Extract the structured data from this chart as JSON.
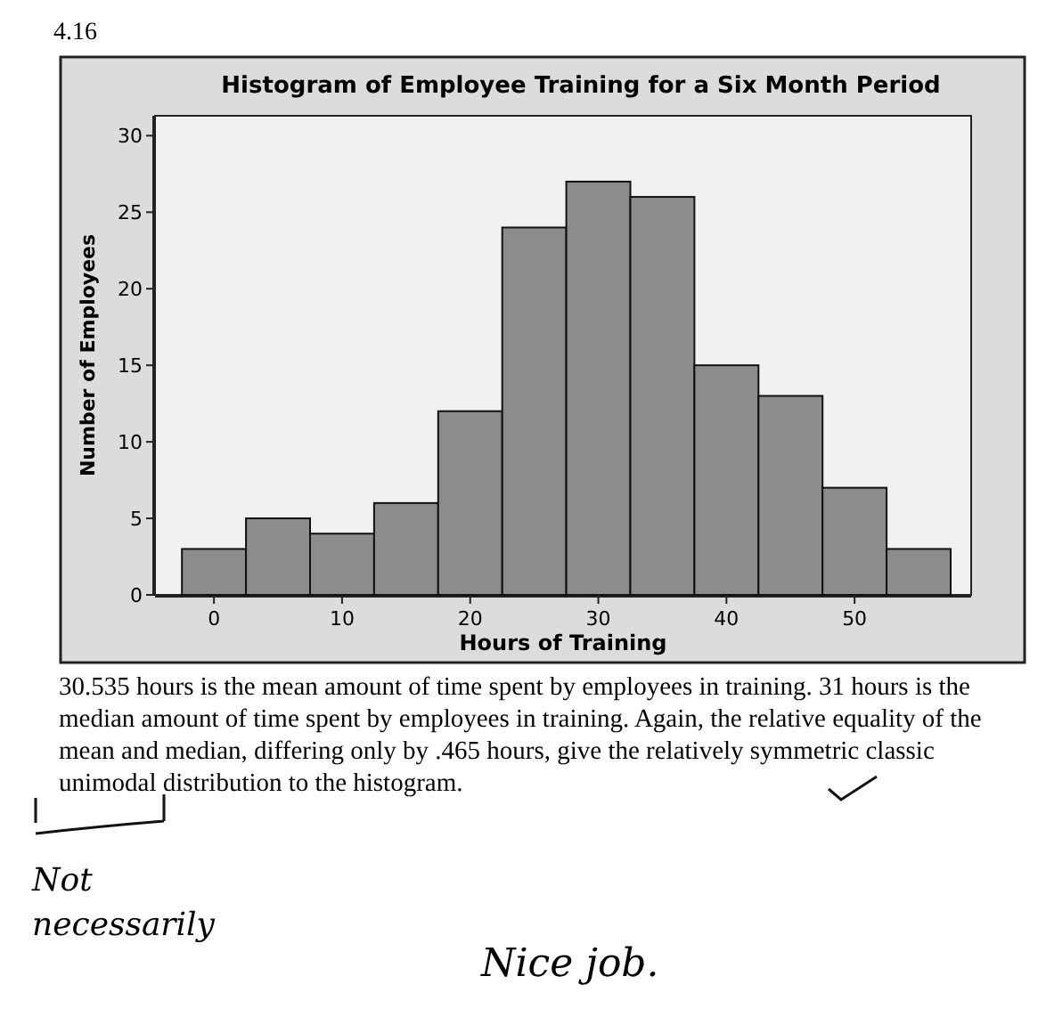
{
  "chart_data": {
    "type": "histogram",
    "title": "Histogram of Employee Training for a Six Month Period",
    "xlabel": "Hours of Training",
    "ylabel": "Number of Employees",
    "bins": [
      -2.5,
      2.5,
      7.5,
      12.5,
      17.5,
      22.5,
      27.5,
      32.5,
      37.5,
      42.5,
      47.5,
      52.5,
      57.5
    ],
    "values": [
      3,
      5,
      4,
      6,
      12,
      24,
      27,
      26,
      15,
      13,
      7,
      3
    ],
    "color": "#8c8c8c",
    "xlim": [
      -4.6,
      59.1
    ],
    "xticks": [
      0,
      10,
      20,
      30,
      40,
      50
    ],
    "ylim": [
      0,
      31.3
    ],
    "yticks": [
      0,
      5,
      10,
      15,
      20,
      25,
      30
    ],
    "grid": false,
    "annotations": [
      "4.16",
      "30.535 hours is the mean amount of time spent by employees in training.  31 hours is the median amount of time spent by employees in training.  Again, the relative equality of the mean and median, differing only by .465 hours, give the relatively symmetric classic unimodal distribution to the histogram.",
      "Not necessarily",
      "Nice job."
    ]
  }
}
